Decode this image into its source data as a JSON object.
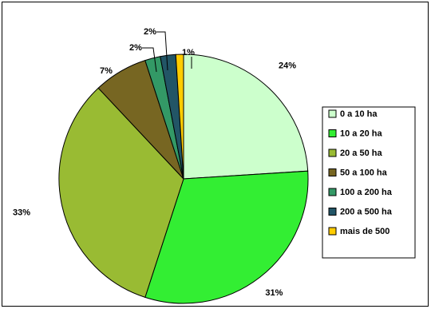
{
  "chart_data": {
    "type": "pie",
    "title": "",
    "start_angle_deg": 0,
    "direction": "clockwise",
    "legend_position": "right",
    "categories": [
      "0 a 10 ha",
      "10 a 20 ha",
      "20 a 50 ha",
      "50 a 100 ha",
      "100 a 200 ha",
      "200 a 500 ha",
      "mais de 500"
    ],
    "values": [
      24,
      31,
      33,
      7,
      2,
      2,
      1
    ],
    "labels": [
      "24%",
      "31%",
      "33%",
      "7%",
      "2%",
      "2%",
      "1%"
    ],
    "colors": [
      "#ccffcc",
      "#33ee33",
      "#99bb33",
      "#776622",
      "#339966",
      "#225566",
      "#ffcc00"
    ]
  }
}
